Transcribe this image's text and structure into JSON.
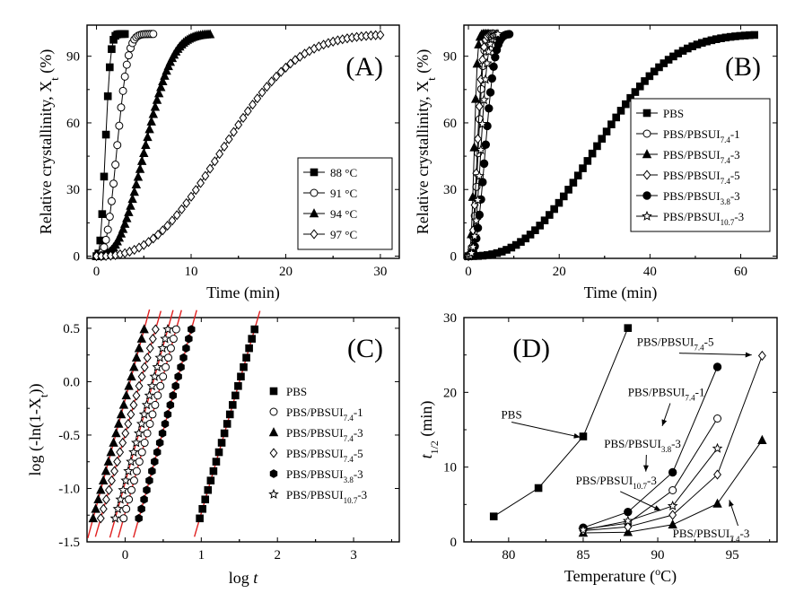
{
  "chart_data": [
    {
      "panel": "(A)",
      "type": "line",
      "xlabel": "Time (min)",
      "ylabel_main": "Relative crystallinity, X",
      "ylabel_sub": "t",
      "ylabel_suffix": " (%)",
      "xlim": [
        -1,
        32
      ],
      "ylim": [
        -1,
        104
      ],
      "xticks": [
        0,
        10,
        20,
        30
      ],
      "yticks": [
        0,
        30,
        60,
        90
      ],
      "legend_position": "bottom-right",
      "series": [
        {
          "name": "88 °C",
          "marker": "square",
          "t_half": 0.95,
          "n": 2.6,
          "t_end": 3.0
        },
        {
          "name": "91 °C",
          "marker": "circle-open",
          "t_half": 2.2,
          "n": 2.8,
          "t_end": 6.0
        },
        {
          "name": "94 °C",
          "marker": "triangle",
          "t_half": 5.2,
          "n": 2.7,
          "t_end": 12.0
        },
        {
          "name": "97 °C",
          "marker": "diamond-open",
          "t_half": 13.6,
          "n": 2.6,
          "t_end": 30.0
        }
      ]
    },
    {
      "panel": "(B)",
      "type": "line",
      "xlabel": "Time (min)",
      "ylabel_main": "Relative crystallinity, X",
      "ylabel_sub": "t",
      "ylabel_suffix": " (%)",
      "xlim": [
        -1,
        68
      ],
      "ylim": [
        -1,
        104
      ],
      "xticks": [
        0,
        20,
        40,
        60
      ],
      "yticks": [
        0,
        30,
        60,
        90
      ],
      "legend_position": "center-right",
      "series": [
        {
          "name": "PBS",
          "sub": "",
          "suffix": "",
          "marker": "square",
          "t_half": 28.5,
          "n": 2.6,
          "t_end": 63.0
        },
        {
          "name": "PBS/PBSUI",
          "sub": "7.4",
          "suffix": "-1",
          "marker": "circle-open",
          "t_half": 2.2,
          "n": 2.8,
          "t_end": 6.0
        },
        {
          "name": "PBS/PBSUI",
          "sub": "7.4",
          "suffix": "-3",
          "marker": "triangle",
          "t_half": 1.3,
          "n": 2.7,
          "t_end": 4.5
        },
        {
          "name": "PBS/PBSUI",
          "sub": "7.4",
          "suffix": "-5",
          "marker": "diamond-open",
          "t_half": 2.0,
          "n": 2.6,
          "t_end": 5.5
        },
        {
          "name": "PBS/PBSUI",
          "sub": "3.8",
          "suffix": "-3",
          "marker": "circle",
          "t_half": 3.8,
          "n": 2.7,
          "t_end": 9.0
        },
        {
          "name": "PBS/PBSUI",
          "sub": "10.7",
          "suffix": "-3",
          "marker": "star-open",
          "t_half": 2.8,
          "n": 2.8,
          "t_end": 6.5
        }
      ]
    },
    {
      "panel": "(C)",
      "type": "scatter",
      "xlabel_main": "log ",
      "xlabel_italic": "t",
      "ylabel_main": "log (-ln(1-X",
      "ylabel_sub": "t",
      "ylabel_suffix": "))",
      "xlim": [
        -0.5,
        3.6
      ],
      "ylim": [
        -1.5,
        0.6
      ],
      "xticks": [
        0,
        1,
        2,
        3
      ],
      "yticks": [
        -1.5,
        -1.0,
        -0.5,
        0.0,
        0.5
      ],
      "fit_lines": true,
      "fit_color": "#e02020",
      "legend_position": "right",
      "series": [
        {
          "name": "PBS",
          "sub": "",
          "suffix": "",
          "marker": "square",
          "x_start": 0.98,
          "x_end": 1.7
        },
        {
          "name": "PBS/PBSUI",
          "sub": "7.4",
          "suffix": "-1",
          "marker": "circle-open",
          "x_start": -0.02,
          "x_end": 0.67
        },
        {
          "name": "PBS/PBSUI",
          "sub": "7.4",
          "suffix": "-3",
          "marker": "triangle",
          "x_start": -0.42,
          "x_end": 0.25
        },
        {
          "name": "PBS/PBSUI",
          "sub": "7.4",
          "suffix": "-5",
          "marker": "diamond-open",
          "x_start": -0.32,
          "x_end": 0.4
        },
        {
          "name": "PBS/PBSUI",
          "sub": "3.8",
          "suffix": "-3",
          "marker": "hexagon",
          "x_start": 0.18,
          "x_end": 0.87
        },
        {
          "name": "PBS/PBSUI",
          "sub": "10.7",
          "suffix": "-3",
          "marker": "star-open",
          "x_start": -0.13,
          "x_end": 0.56
        }
      ]
    },
    {
      "panel": "(D)",
      "type": "line",
      "xlabel": "Temperature (",
      "xlabel_sup": "o",
      "xlabel_suffix": "C)",
      "ylabel_main": "t",
      "ylabel_sub": "1/2",
      "ylabel_suffix": " (min)",
      "xlim": [
        77,
        98
      ],
      "ylim": [
        0,
        30
      ],
      "xticks": [
        80,
        85,
        90,
        95
      ],
      "yticks": [
        0,
        10,
        20,
        30
      ],
      "series": [
        {
          "name": "PBS",
          "marker": "square",
          "x": [
            79,
            82,
            85,
            88
          ],
          "y": [
            3.4,
            7.2,
            14.1,
            28.6
          ]
        },
        {
          "name": "PBS/PBSUI7.4-1",
          "marker": "circle-open",
          "x": [
            85,
            88,
            91,
            94
          ],
          "y": [
            1.7,
            2.5,
            6.9,
            16.5
          ]
        },
        {
          "name": "PBS/PBSUI7.4-3",
          "marker": "triangle",
          "x": [
            85,
            88,
            91,
            94,
            97
          ],
          "y": [
            1.2,
            1.3,
            2.3,
            5.1,
            13.6
          ]
        },
        {
          "name": "PBS/PBSUI7.4-5",
          "marker": "diamond-open",
          "x": [
            85,
            88,
            91,
            94,
            97
          ],
          "y": [
            1.5,
            2.0,
            3.6,
            9.0,
            24.9
          ]
        },
        {
          "name": "PBS/PBSUI3.8-3",
          "marker": "circle",
          "x": [
            85,
            88,
            91,
            94
          ],
          "y": [
            1.9,
            4.0,
            9.3,
            23.4
          ]
        },
        {
          "name": "PBS/PBSUI10.7-3",
          "marker": "star-open",
          "x": [
            85,
            88,
            91,
            94
          ],
          "y": [
            1.6,
            2.8,
            4.8,
            12.5
          ]
        }
      ],
      "annotations": [
        {
          "name": "PBS",
          "sub": "",
          "suffix": "",
          "text_pos": [
            79.5,
            16.5
          ],
          "arrow_to": [
            84.8,
            14.0
          ]
        },
        {
          "name": "PBS/PBSUI",
          "sub": "7.4",
          "suffix": "-1",
          "text_pos": [
            88.0,
            19.5
          ],
          "arrow_to": [
            90.3,
            15.5
          ]
        },
        {
          "name": "PBS/PBSUI",
          "sub": "3.8",
          "suffix": "-3",
          "text_pos": [
            86.4,
            12.6
          ],
          "arrow_to": [
            89.2,
            9.4
          ]
        },
        {
          "name": "PBS/PBSUI",
          "sub": "10.7",
          "suffix": "-3",
          "text_pos": [
            84.5,
            7.7
          ],
          "arrow_to": [
            90.2,
            4.2
          ]
        },
        {
          "name": "PBS/PBSUI",
          "sub": "7.4",
          "suffix": "-5",
          "text_pos": [
            88.6,
            26.2
          ],
          "arrow_to": [
            96.3,
            25.0
          ]
        },
        {
          "name": "PBS/PBSUI",
          "sub": "7.4",
          "suffix": "-3",
          "text_pos": [
            91.0,
            0.6
          ],
          "arrow_to": [
            94.8,
            5.6
          ]
        }
      ]
    }
  ]
}
